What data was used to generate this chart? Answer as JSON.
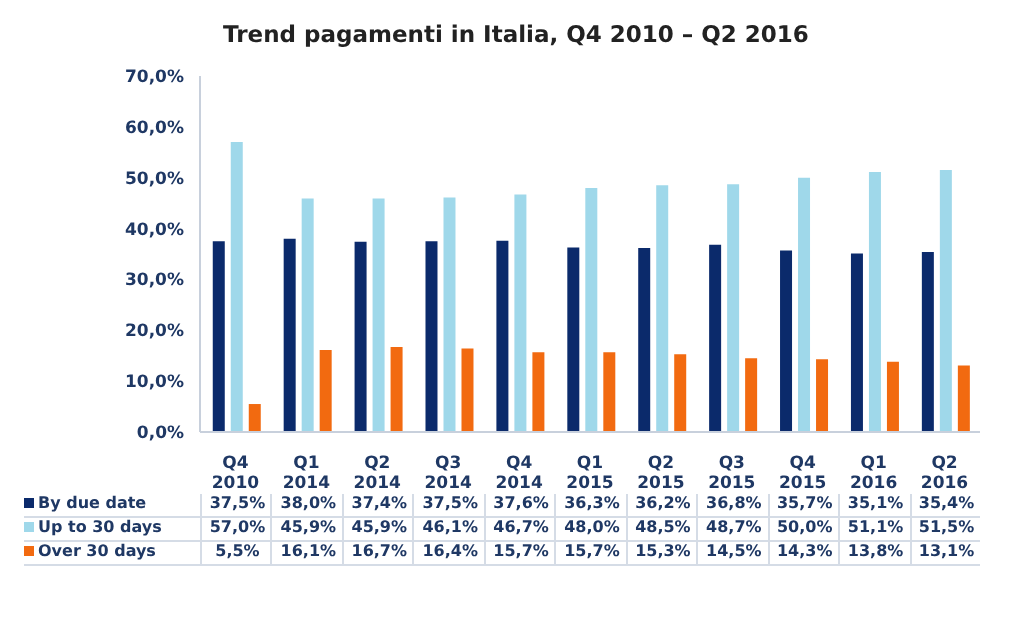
{
  "chart_data": {
    "type": "bar",
    "title": "Trend pagamenti in Italia, Q4 2010 – Q2 2016",
    "categories": [
      "Q4 2010",
      "Q1 2014",
      "Q2 2014",
      "Q3 2014",
      "Q4 2014",
      "Q1 2015",
      "Q2 2015",
      "Q3 2015",
      "Q4 2015",
      "Q1 2016",
      "Q2 2016"
    ],
    "series": [
      {
        "name": "By due date",
        "color": "#0b2a6b",
        "values": [
          37.5,
          38.0,
          37.4,
          37.5,
          37.6,
          36.3,
          36.2,
          36.8,
          35.7,
          35.1,
          35.4
        ],
        "value_labels": [
          "37,5%",
          "38,0%",
          "37,4%",
          "37,5%",
          "37,6%",
          "36,3%",
          "36,2%",
          "36,8%",
          "35,7%",
          "35,1%",
          "35,4%"
        ]
      },
      {
        "name": "Up to 30 days",
        "color": "#9fd8ea",
        "values": [
          57.0,
          45.9,
          45.9,
          46.1,
          46.7,
          48.0,
          48.5,
          48.7,
          50.0,
          51.1,
          51.5
        ],
        "value_labels": [
          "57,0%",
          "45,9%",
          "45,9%",
          "46,1%",
          "46,7%",
          "48,0%",
          "48,5%",
          "48,7%",
          "50,0%",
          "51,1%",
          "51,5%"
        ]
      },
      {
        "name": "Over 30 days",
        "color": "#f26a10",
        "values": [
          5.5,
          16.1,
          16.7,
          16.4,
          15.7,
          15.7,
          15.3,
          14.5,
          14.3,
          13.8,
          13.1
        ],
        "value_labels": [
          "5,5%",
          "16,1%",
          "16,7%",
          "16,4%",
          "15,7%",
          "15,7%",
          "15,3%",
          "14,5%",
          "14,3%",
          "13,8%",
          "13,1%"
        ]
      }
    ],
    "ylim": [
      0,
      70
    ],
    "yticks": [
      {
        "value": 0,
        "label": "0,0%"
      },
      {
        "value": 10,
        "label": "10,0%"
      },
      {
        "value": 20,
        "label": "20,0%"
      },
      {
        "value": 30,
        "label": "30,0%"
      },
      {
        "value": 40,
        "label": "40,0%"
      },
      {
        "value": 50,
        "label": "50,0%"
      },
      {
        "value": 60,
        "label": "60,0%"
      },
      {
        "value": 70,
        "label": "70,0%"
      }
    ],
    "grid": false,
    "legend": "bottom"
  }
}
